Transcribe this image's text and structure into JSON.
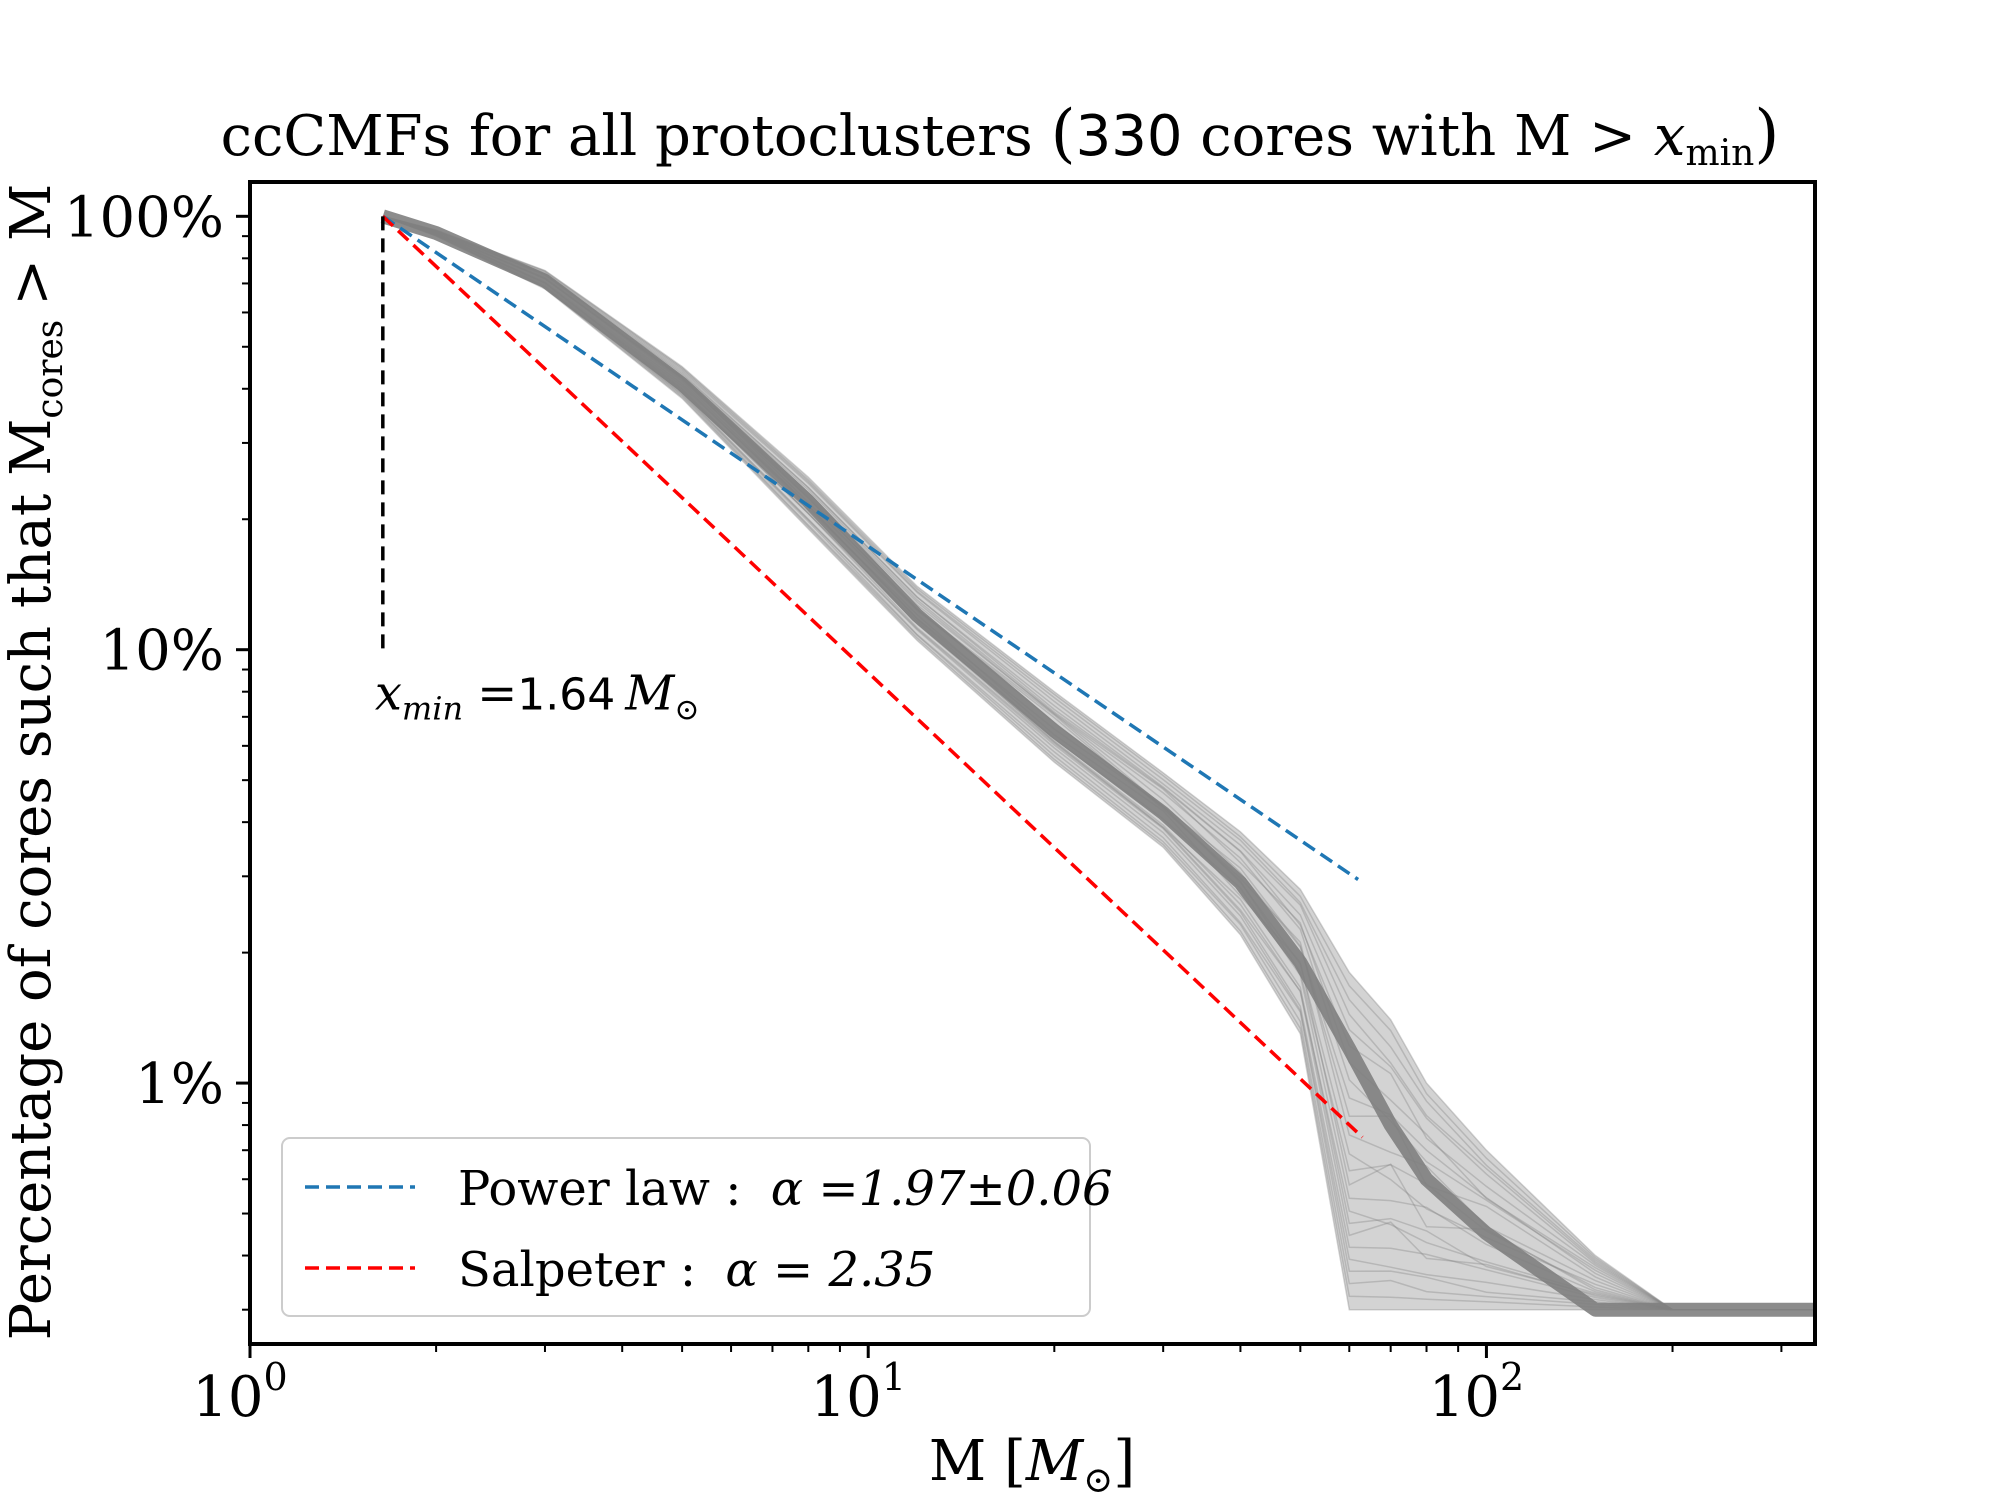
{
  "chart_data": {
    "type": "line",
    "title": {
      "prefix": "ccCMFs for all protoclusters",
      "count": "330",
      "suffix": "cores with M",
      "gt": ">",
      "xmin_symbol": "x",
      "xmin_sub": "min"
    },
    "xlabel": {
      "main": "M [",
      "symbol": "M",
      "sub": "⊙",
      "close": "]"
    },
    "ylabel": {
      "prefix": "Percentage of cores such that M",
      "sub": "cores",
      "suffix": "> M"
    },
    "x_scale": "log",
    "y_scale": "log",
    "xlim": [
      1,
      340
    ],
    "ylim": [
      0.0025,
      1.2
    ],
    "x_ticks": [
      {
        "value": 1,
        "base": "10",
        "exp": "0"
      },
      {
        "value": 10,
        "base": "10",
        "exp": "1"
      },
      {
        "value": 100,
        "base": "10",
        "exp": "2"
      }
    ],
    "y_ticks": [
      {
        "value": 1.0,
        "label": "100%"
      },
      {
        "value": 0.1,
        "label": "10%"
      },
      {
        "value": 0.01,
        "label": "1%"
      }
    ],
    "xmin_marker": {
      "x": 1.64,
      "y_range": [
        0.1,
        1.0
      ],
      "label_symbol": "x",
      "label_sub": "min",
      "label_eq": "=",
      "label_value": "1.64",
      "label_unit": "M",
      "label_unit_sub": "⊙",
      "color": "#000000"
    },
    "bootstrap_band": {
      "description_count": 330,
      "color": "#808080",
      "x": [
        1.64,
        2,
        3,
        5,
        8,
        12,
        20,
        30,
        40,
        50,
        60,
        70,
        80,
        100,
        150,
        200,
        340
      ],
      "y_upper": [
        1.0,
        0.93,
        0.75,
        0.45,
        0.25,
        0.14,
        0.08,
        0.052,
        0.038,
        0.028,
        0.018,
        0.014,
        0.01,
        0.007,
        0.004,
        0.003,
        0.003
      ],
      "y_lower": [
        1.0,
        0.9,
        0.68,
        0.38,
        0.19,
        0.105,
        0.055,
        0.035,
        0.022,
        0.013,
        0.003,
        0.003,
        0.003,
        0.003,
        0.003,
        0.003,
        0.003
      ],
      "y_median": [
        1.0,
        0.915,
        0.71,
        0.41,
        0.22,
        0.12,
        0.065,
        0.042,
        0.029,
        0.019,
        0.012,
        0.008,
        0.006,
        0.0045,
        0.003,
        0.003,
        0.003
      ]
    },
    "series": [
      {
        "name": "Power law",
        "alpha_symbol": "α",
        "alpha_value": "1.97±0.06",
        "color": "#1f77b4",
        "style": "dashed",
        "x": [
          1.64,
          62
        ],
        "y": [
          1.0,
          0.0295
        ]
      },
      {
        "name": "Salpeter",
        "alpha_symbol": "α",
        "alpha_value": "2.35",
        "color": "#ff0000",
        "style": "dashed",
        "x": [
          1.64,
          63
        ],
        "y": [
          1.0,
          0.0075
        ]
      }
    ],
    "legend": {
      "placement": "lower-left",
      "entries": [
        {
          "label": "Power law :",
          "alpha": "α =1.97±0.06",
          "color": "#1f77b4"
        },
        {
          "label": "Salpeter :",
          "alpha": "α = 2.35",
          "color": "#ff0000"
        }
      ]
    },
    "grid": false
  }
}
